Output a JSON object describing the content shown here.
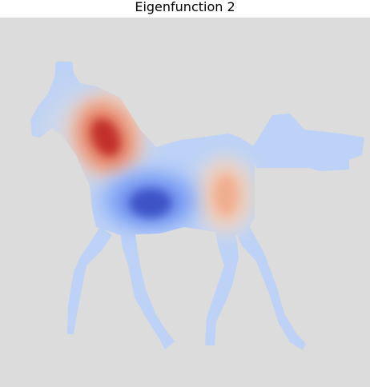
{
  "figure": {
    "title": "Eigenfunction 2",
    "background_color": "#dddcdc",
    "colormap": "coolwarm",
    "colors": {
      "negative_strong": "#3b4cc0",
      "negative_light": "#bcd2f7",
      "positive_light": "#f5c4ac",
      "positive_strong": "#b40426"
    },
    "subject": "horse-silhouette-eigenfunction"
  }
}
